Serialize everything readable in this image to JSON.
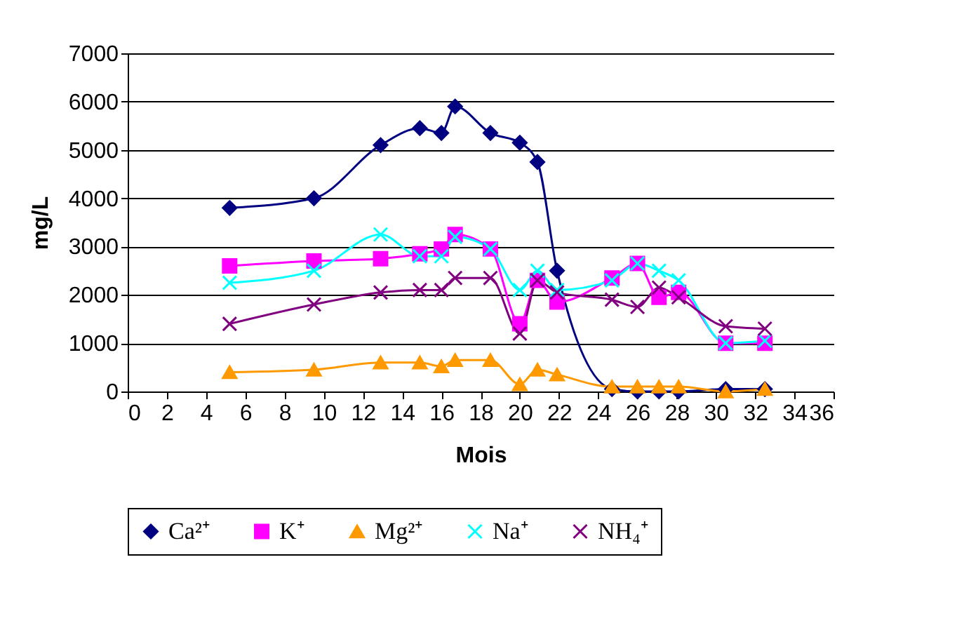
{
  "chart_data": {
    "type": "line",
    "xlabel": "Mois",
    "ylabel": "mg/L",
    "x": [
      5.2,
      9.5,
      12.9,
      14.9,
      16.0,
      16.7,
      18.5,
      20.0,
      20.9,
      21.9,
      24.7,
      26.0,
      27.1,
      28.1,
      30.5,
      32.5
    ],
    "series": [
      {
        "name": "Ca²⁺",
        "color": "#000080",
        "marker": "diamond",
        "values": [
          3800,
          4000,
          5100,
          5450,
          5350,
          5900,
          5350,
          5150,
          4750,
          2500,
          50,
          0,
          0,
          0,
          50,
          50
        ]
      },
      {
        "name": "K⁺",
        "color": "#ff00ff",
        "marker": "square",
        "values": [
          2600,
          2700,
          2750,
          2850,
          2950,
          3250,
          2950,
          1400,
          2300,
          1850,
          2350,
          2650,
          1950,
          2050,
          1000,
          1000
        ]
      },
      {
        "name": "Mg²⁺",
        "color": "#ff9900",
        "marker": "triangle",
        "values": [
          400,
          450,
          600,
          600,
          520,
          650,
          650,
          150,
          450,
          350,
          100,
          100,
          100,
          100,
          0,
          50
        ]
      },
      {
        "name": "Na⁺",
        "color": "#00ffff",
        "marker": "cross",
        "values": [
          2250,
          2500,
          3250,
          2800,
          2800,
          3200,
          2950,
          2100,
          2500,
          2100,
          2300,
          2650,
          2500,
          2300,
          1000,
          1050
        ]
      },
      {
        "name": "NH₄⁺",
        "color": "#800080",
        "marker": "cross",
        "values": [
          1400,
          1800,
          2050,
          2100,
          2100,
          2350,
          2350,
          1200,
          2300,
          2050,
          1900,
          1750,
          2150,
          1950,
          1350,
          1300
        ]
      }
    ],
    "xlim": [
      0,
      36
    ],
    "xticks": [
      0,
      2,
      4,
      6,
      8,
      10,
      12,
      14,
      16,
      18,
      20,
      22,
      24,
      26,
      28,
      30,
      32,
      34,
      36
    ],
    "ylim": [
      0,
      7000
    ],
    "yticks": [
      0,
      1000,
      2000,
      3000,
      4000,
      5000,
      6000,
      7000
    ],
    "grid": "y",
    "legend": "bottom"
  }
}
